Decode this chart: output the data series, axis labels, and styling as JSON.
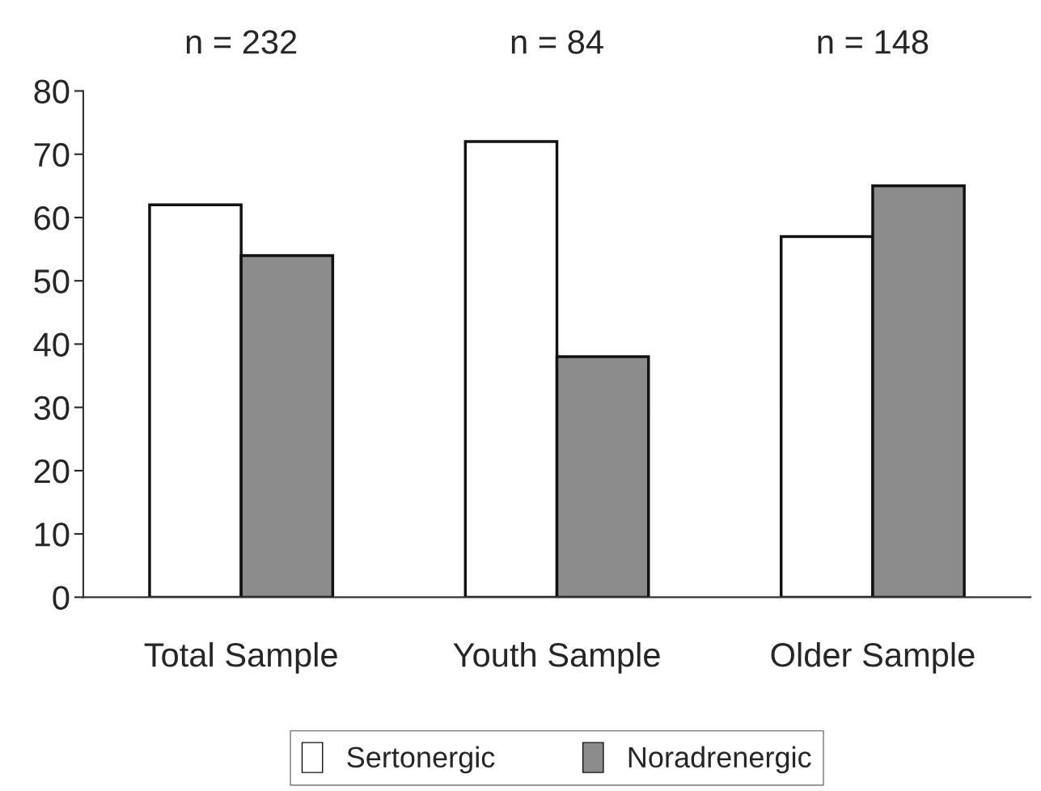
{
  "chart_data": {
    "type": "bar",
    "categories": [
      "Total Sample",
      "Youth Sample",
      "Older Sample"
    ],
    "series": [
      {
        "name": "Sertonergic",
        "color": "#ffffff",
        "values": [
          62,
          72,
          57
        ]
      },
      {
        "name": "Noradrenergic",
        "color": "#8c8c8c",
        "values": [
          54,
          38,
          65
        ]
      }
    ],
    "annotations": [
      "n = 232",
      "n = 84",
      "n = 148"
    ],
    "ylim": [
      0,
      80
    ],
    "yticks": [
      0,
      10,
      20,
      30,
      40,
      50,
      60,
      70,
      80
    ],
    "grid": false,
    "legend": "bottom"
  }
}
